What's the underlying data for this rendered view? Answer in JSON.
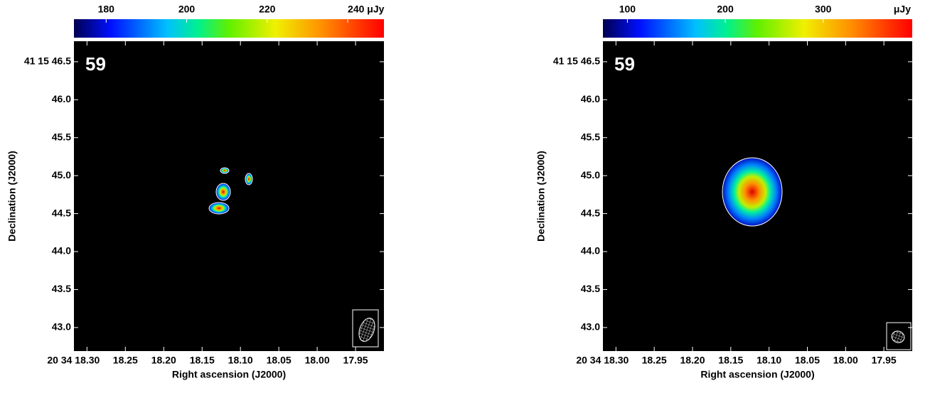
{
  "chart_data": [
    {
      "type": "image",
      "panel_label": "59",
      "x_label": "Right ascension (J2000)",
      "y_label": "Declination (J2000)",
      "xlim": [
        18.317,
        17.913
      ],
      "ylim": [
        42.69,
        46.77
      ],
      "xticks": [
        {
          "value": 18.3,
          "label": "20 34 18.30"
        },
        18.25,
        {
          "value": 18.2,
          "label": "18.20"
        },
        18.15,
        {
          "value": 18.1,
          "label": "18.10"
        },
        18.05,
        {
          "value": 18.0,
          "label": "18.00"
        },
        17.95
      ],
      "yticks": [
        {
          "value": 46.5,
          "label": "41 15 46.5"
        },
        {
          "value": 46.0,
          "label": "46.0"
        },
        45.5,
        {
          "value": 45.0,
          "label": "45.0"
        },
        44.5,
        {
          "value": 44.0,
          "label": "44.0"
        },
        43.5,
        {
          "value": 43.0,
          "label": "43.0"
        }
      ],
      "clim": [
        172,
        249
      ],
      "cticks": [
        180,
        200,
        220,
        {
          "value": 240,
          "label": "240 μJy"
        }
      ]
    },
    {
      "type": "image",
      "panel_label": "59",
      "x_label": "Right ascension (J2000)",
      "y_label": "Declination (J2000)",
      "xlim": [
        18.317,
        17.913
      ],
      "ylim": [
        42.69,
        46.77
      ],
      "xticks": [
        {
          "value": 18.3,
          "label": "20 34 18.30"
        },
        18.25,
        {
          "value": 18.2,
          "label": "18.20"
        },
        18.15,
        {
          "value": 18.1,
          "label": "18.10"
        },
        18.05,
        {
          "value": 18.0,
          "label": "18.00"
        },
        17.95
      ],
      "yticks": [
        {
          "value": 46.5,
          "label": "41 15 46.5"
        },
        {
          "value": 46.0,
          "label": "46.0"
        },
        45.5,
        {
          "value": 45.0,
          "label": "45.0"
        },
        44.5,
        {
          "value": 44.0,
          "label": "44.0"
        },
        43.5,
        {
          "value": 43.0,
          "label": "43.0"
        }
      ],
      "clim": [
        75,
        391
      ],
      "cticks": [
        100,
        200,
        300
      ],
      "colorbar_unit": "μJy"
    }
  ]
}
